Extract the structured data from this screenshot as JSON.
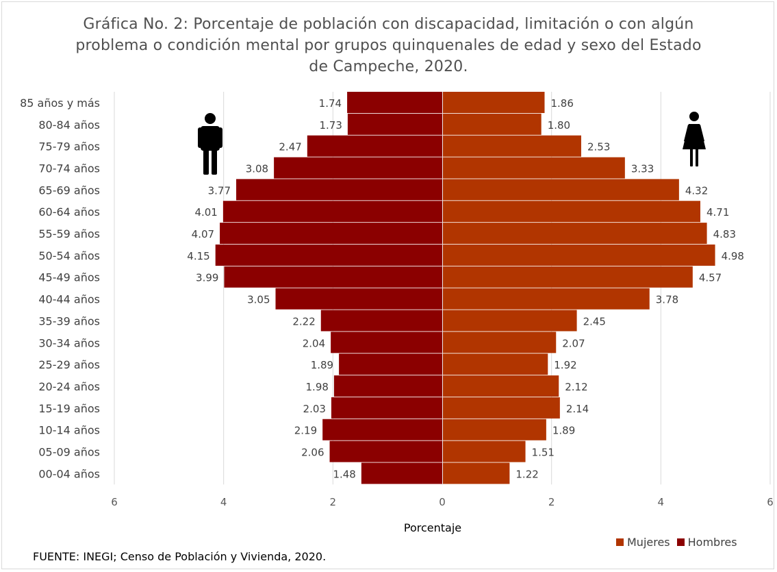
{
  "chart_data": {
    "type": "bar",
    "title": "Gráfica No. 2: Porcentaje de población con discapacidad, limitación o con algún problema o condición mental por grupos quinquenales de edad y sexo del Estado de Campeche, 2020.",
    "xlabel": "Porcentaje",
    "ylabel": "",
    "xlim": [
      -6,
      6
    ],
    "x_ticks": [
      "6",
      "4",
      "2",
      "0",
      "2",
      "4",
      "6"
    ],
    "grid": true,
    "legend_position": "bottom-right",
    "categories": [
      "85 años y más",
      "80-84 años",
      "75-79 años",
      "70-74 años",
      "65-69 años",
      "60-64 años",
      "55-59 años",
      "50-54 años",
      "45-49 años",
      "40-44 años",
      "35-39 años",
      "30-34 años",
      "25-29 años",
      "20-24 años",
      "15-19 años",
      "10-14 años",
      "05-09 años",
      "00-04 años"
    ],
    "series": [
      {
        "name": "Hombres",
        "color": "#8b0000",
        "side": "left",
        "values": [
          1.74,
          1.73,
          2.47,
          3.08,
          3.77,
          4.01,
          4.07,
          4.15,
          3.99,
          3.05,
          2.22,
          2.04,
          1.89,
          1.98,
          2.03,
          2.19,
          2.06,
          1.48
        ]
      },
      {
        "name": "Mujeres",
        "color": "#b13500",
        "side": "right",
        "values": [
          1.86,
          1.8,
          2.53,
          3.33,
          4.32,
          4.71,
          4.83,
          4.98,
          4.57,
          3.78,
          2.45,
          2.07,
          1.92,
          2.12,
          2.14,
          1.89,
          1.51,
          1.22
        ]
      }
    ],
    "data_labels": {
      "Hombres": [
        "1.74",
        "1.73",
        "2.47",
        "3.08",
        "3.77",
        "4.01",
        "4.07",
        "4.15",
        "3.99",
        "3.05",
        "2.22",
        "2.04",
        "1.89",
        "1.98",
        "2.03",
        "2.19",
        "2.06",
        "1.48"
      ],
      "Mujeres": [
        "1.86",
        "1.80",
        "2.53",
        "3.33",
        "4.32",
        "4.71",
        "4.83",
        "4.98",
        "4.57",
        "3.78",
        "2.45",
        "2.07",
        "1.92",
        "2.12",
        "2.14",
        "1.89",
        "1.51",
        "1.22"
      ]
    }
  },
  "icons": {
    "male": "man-icon",
    "female": "woman-icon"
  },
  "source": "FUENTE: INEGI; Censo de Población y Vivienda, 2020."
}
